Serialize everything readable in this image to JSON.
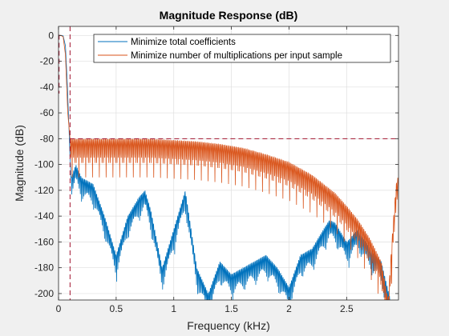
{
  "chart_data": {
    "type": "line",
    "title": "Magnitude Response (dB)",
    "xlabel": "Frequency (kHz)",
    "ylabel": "Magnitude (dB)",
    "xlim": [
      0,
      2.95
    ],
    "ylim": [
      -205,
      7
    ],
    "xticks": [
      0,
      0.5,
      1,
      1.5,
      2,
      2.5
    ],
    "xtick_labels": [
      "0",
      "0.5",
      "1",
      "1.5",
      "2",
      "2.5"
    ],
    "yticks": [
      0,
      -20,
      -40,
      -60,
      -80,
      -100,
      -120,
      -140,
      -160,
      -180,
      -200
    ],
    "ytick_labels": [
      "0",
      "-20",
      "-40",
      "-60",
      "-80",
      "-100",
      "-120",
      "-140",
      "-160",
      "-180",
      "-200"
    ],
    "grid": true,
    "legend": "top-right",
    "colors": {
      "series1": "#0072bd",
      "series2": "#d95319",
      "spec": "#a2142f"
    },
    "passband_edge_khz": 0.1,
    "stopband_attenuation_db": -80,
    "series": [
      {
        "name": "Minimize total coefficients",
        "x": [
          0,
          0.02,
          0.04,
          0.06,
          0.075,
          0.09,
          0.1,
          0.11,
          0.15,
          0.2,
          0.3,
          0.4,
          0.5,
          0.6,
          0.7,
          0.75,
          0.8,
          0.9,
          1.0,
          1.1,
          1.2,
          1.3,
          1.4,
          1.5,
          1.6,
          1.7,
          1.8,
          1.9,
          2.0,
          2.1,
          2.2,
          2.3,
          2.35,
          2.4,
          2.5,
          2.6,
          2.7,
          2.8,
          2.88
        ],
        "y": [
          0,
          0,
          -0.3,
          -8,
          -35,
          -70,
          -95,
          -110,
          -100,
          -110,
          -115,
          -140,
          -170,
          -140,
          -125,
          -120,
          -135,
          -180,
          -150,
          -120,
          -180,
          -200,
          -175,
          -185,
          -180,
          -175,
          -170,
          -180,
          -195,
          -170,
          -165,
          -150,
          -143,
          -145,
          -160,
          -150,
          -165,
          -175,
          -205
        ]
      },
      {
        "name": "Minimize number of multiplications per input sample",
        "x": [
          0,
          0.02,
          0.04,
          0.06,
          0.08,
          0.1,
          0.11,
          0.2,
          0.4,
          0.6,
          0.8,
          1.0,
          1.2,
          1.4,
          1.6,
          1.8,
          2.0,
          2.2,
          2.4,
          2.5,
          2.6,
          2.7,
          2.8,
          2.86,
          2.9,
          2.93,
          2.95
        ],
        "y": [
          0,
          0,
          -1,
          -15,
          -60,
          -80,
          -80,
          -80,
          -80,
          -80,
          -80,
          -81,
          -82,
          -84,
          -87,
          -92,
          -98,
          -108,
          -122,
          -132,
          -143,
          -157,
          -175,
          -205,
          -150,
          -115,
          -108
        ]
      }
    ]
  }
}
